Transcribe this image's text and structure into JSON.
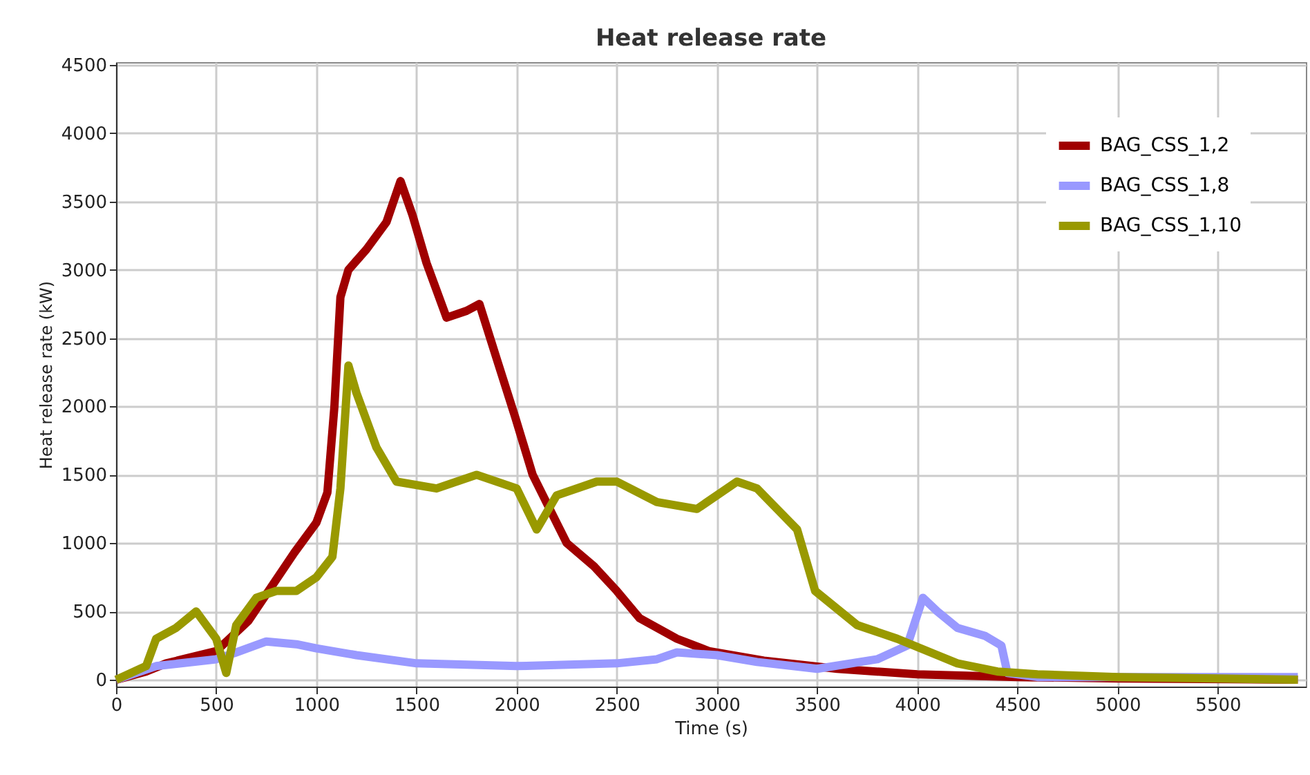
{
  "chart_data": {
    "type": "line",
    "title": "Heat release rate",
    "xlabel": "Time (s)",
    "ylabel": "Heat release rate (kW)",
    "xlim": [
      0,
      5940
    ],
    "ylim": [
      -50,
      4520
    ],
    "xticks": [
      0,
      500,
      1000,
      1500,
      2000,
      2500,
      3000,
      3500,
      4000,
      4500,
      5000,
      5500
    ],
    "yticks": [
      0,
      500,
      1000,
      1500,
      2000,
      2500,
      3000,
      3500,
      4000,
      4500
    ],
    "grid": true,
    "legend": "top right",
    "marker": "none",
    "line_style": "solid",
    "series": [
      {
        "name": "BAG_CSS_1,2",
        "color": "#a00000",
        "x": [
          0,
          150,
          250,
          500,
          660,
          890,
          1000,
          1055,
          1090,
          1120,
          1160,
          1250,
          1350,
          1420,
          1480,
          1550,
          1650,
          1750,
          1814,
          1900,
          1993,
          2080,
          2158,
          2250,
          2386,
          2500,
          2614,
          2800,
          2959,
          3234,
          3600,
          4000,
          4500,
          5000,
          5900
        ],
        "values": [
          0,
          60,
          120,
          210,
          430,
          930,
          1150,
          1370,
          2000,
          2800,
          3000,
          3150,
          3350,
          3650,
          3400,
          3050,
          2650,
          2700,
          2750,
          2350,
          1920,
          1500,
          1270,
          1000,
          830,
          650,
          450,
          300,
          210,
          140,
          80,
          40,
          20,
          10,
          0
        ]
      },
      {
        "name": "BAG_CSS_1,8",
        "color": "#9999ff",
        "x": [
          0,
          200,
          500,
          600,
          750,
          900,
          1000,
          1200,
          1500,
          2000,
          2500,
          2700,
          2800,
          3000,
          3200,
          3500,
          3800,
          3950,
          4028,
          4100,
          4200,
          4340,
          4420,
          4450,
          4600,
          5000,
          5900
        ],
        "values": [
          0,
          100,
          150,
          200,
          280,
          260,
          230,
          180,
          120,
          100,
          120,
          150,
          200,
          180,
          130,
          80,
          150,
          250,
          600,
          500,
          380,
          320,
          250,
          50,
          20,
          20,
          20
        ]
      },
      {
        "name": "BAG_CSS_1,10",
        "color": "#999900",
        "x": [
          0,
          150,
          200,
          300,
          400,
          500,
          550,
          600,
          700,
          800,
          900,
          1000,
          1080,
          1120,
          1160,
          1200,
          1300,
          1400,
          1600,
          1800,
          2000,
          2100,
          2200,
          2400,
          2500,
          2700,
          2900,
          3100,
          3200,
          3300,
          3400,
          3490,
          3700,
          3900,
          4100,
          4200,
          4400,
          4600,
          5000,
          5900
        ],
        "values": [
          0,
          100,
          300,
          380,
          500,
          300,
          50,
          400,
          600,
          650,
          650,
          750,
          900,
          1400,
          2300,
          2100,
          1700,
          1450,
          1400,
          1500,
          1400,
          1100,
          1350,
          1450,
          1450,
          1300,
          1250,
          1450,
          1400,
          1250,
          1100,
          650,
          400,
          300,
          180,
          120,
          60,
          40,
          20,
          0
        ]
      }
    ]
  }
}
